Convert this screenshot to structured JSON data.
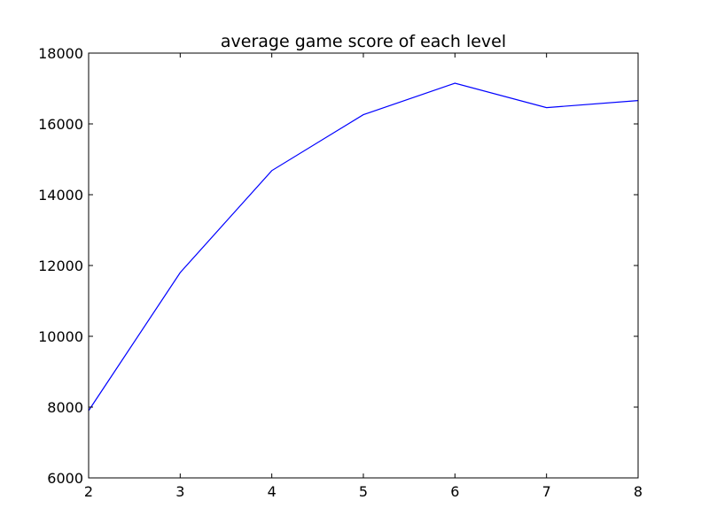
{
  "chart_data": {
    "type": "line",
    "title": "average game score of each level",
    "xlabel": "",
    "ylabel": "",
    "xlim": [
      2,
      8
    ],
    "ylim": [
      6000,
      18000
    ],
    "x_ticks": [
      2,
      3,
      4,
      5,
      6,
      7,
      8
    ],
    "x_tick_labels": [
      "2",
      "3",
      "4",
      "5",
      "6",
      "7",
      "8"
    ],
    "y_ticks": [
      6000,
      8000,
      10000,
      12000,
      14000,
      16000,
      18000
    ],
    "y_tick_labels": [
      "6000",
      "8000",
      "10000",
      "12000",
      "14000",
      "16000",
      "18000"
    ],
    "grid": false,
    "legend": "none",
    "series": [
      {
        "color": "#0000ff",
        "x": [
          2,
          3,
          4,
          5,
          6,
          7,
          8
        ],
        "values": [
          7900,
          11800,
          14680,
          16260,
          17150,
          16460,
          16660
        ]
      }
    ]
  }
}
